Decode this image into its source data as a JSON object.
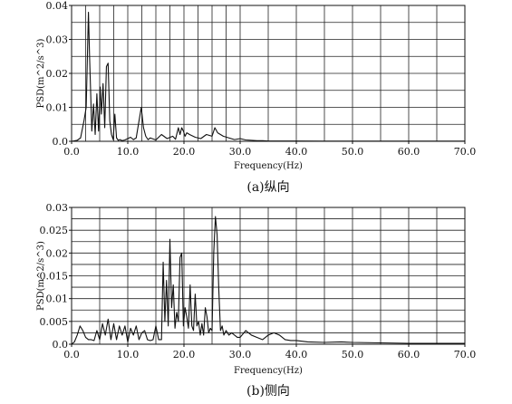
{
  "chart_data": [
    {
      "type": "line",
      "caption": "(a)纵向",
      "xlabel": "Frequency(Hz)",
      "ylabel": "PSD(m^2/s^3)",
      "xlim": [
        0,
        70
      ],
      "ylim": [
        0,
        0.04
      ],
      "xticks": [
        0,
        10,
        20,
        30,
        40,
        50,
        60,
        70
      ],
      "xtick_labels": [
        "0.0",
        "10.0",
        "20.0",
        "30.0",
        "40.0",
        "50.0",
        "60.0",
        "70.0"
      ],
      "yticks": [
        0,
        0.01,
        0.02,
        0.03,
        0.04
      ],
      "ytick_labels": [
        "0.0",
        "0.01",
        "0.02",
        "0.03",
        "0.04"
      ],
      "grid": true,
      "x_gridlines": [
        0,
        2.5,
        5,
        7.5,
        10,
        12.5,
        15,
        17.5,
        20,
        22.5,
        25,
        27.5,
        30,
        35,
        40,
        45,
        50,
        55,
        60,
        65,
        70
      ],
      "y_gridlines": [
        0,
        0.005,
        0.01,
        0.015,
        0.02,
        0.025,
        0.03,
        0.035,
        0.04
      ],
      "series": [
        {
          "x": [
            0,
            1,
            1.6,
            2.2,
            2.6,
            3.0,
            3.2,
            3.6,
            3.9,
            4.2,
            4.5,
            4.8,
            5.1,
            5.3,
            5.6,
            5.9,
            6.2,
            6.5,
            6.8,
            7.1,
            7.4,
            7.7,
            8.0,
            8.3,
            8.6,
            9.0,
            9.5,
            10,
            10.5,
            11,
            11.5,
            12,
            12.4,
            12.8,
            13.2,
            13.6,
            14,
            15,
            16,
            17,
            18,
            18.5,
            19,
            19.3,
            19.6,
            19.9,
            20.2,
            20.5,
            21,
            22,
            23,
            24,
            25,
            25.5,
            26,
            26.5,
            27,
            28,
            29,
            30,
            31,
            32,
            33,
            34,
            35,
            36,
            37,
            38,
            39,
            40,
            45,
            50,
            55,
            60,
            65,
            70
          ],
          "y": [
            0,
            0.0003,
            0.001,
            0.006,
            0.01,
            0.038,
            0.025,
            0.003,
            0.011,
            0.002,
            0.014,
            0.003,
            0.016,
            0.008,
            0.017,
            0.004,
            0.022,
            0.023,
            0.006,
            0.002,
            0.0005,
            0.008,
            0.001,
            0.0003,
            0.0005,
            0.0002,
            0.0004,
            0.0008,
            0.0012,
            0.0005,
            0.001,
            0.006,
            0.01,
            0.004,
            0.0015,
            0.0005,
            0.001,
            0.0004,
            0.002,
            0.0008,
            0.0015,
            0.0006,
            0.004,
            0.002,
            0.004,
            0.003,
            0.0015,
            0.0025,
            0.002,
            0.0012,
            0.0008,
            0.002,
            0.0015,
            0.004,
            0.0025,
            0.002,
            0.0015,
            0.001,
            0.0005,
            0.0008,
            0.0004,
            0.0003,
            0.0002,
            0.0002,
            0.0001,
            0.0001,
            0.0001,
            0.0001,
            0.0001,
            0.0001,
            5e-05,
            5e-05,
            5e-05,
            5e-05,
            5e-05,
            5e-05
          ]
        }
      ]
    },
    {
      "type": "line",
      "caption": "(b)侧向",
      "xlabel": "Frequency(Hz)",
      "ylabel": "PSD(m^2/s^3)",
      "xlim": [
        0,
        70
      ],
      "ylim": [
        0,
        0.03
      ],
      "xticks": [
        0,
        10,
        20,
        30,
        40,
        50,
        60,
        70
      ],
      "xtick_labels": [
        "0.0",
        "10.0",
        "20.0",
        "30.0",
        "40.0",
        "50.0",
        "60.0",
        "70.0"
      ],
      "yticks": [
        0,
        0.005,
        0.01,
        0.015,
        0.02,
        0.025,
        0.03
      ],
      "ytick_labels": [
        "0.0",
        "0.005",
        "0.01",
        "0.015",
        "0.02",
        "0.025",
        "0.03"
      ],
      "grid": true,
      "x_gridlines": [
        0,
        5,
        10,
        15,
        20,
        25,
        30,
        35,
        40,
        45,
        50,
        55,
        60,
        65,
        70
      ],
      "y_gridlines": [
        0,
        0.0025,
        0.005,
        0.0075,
        0.01,
        0.0125,
        0.015,
        0.0175,
        0.02,
        0.0225,
        0.025,
        0.0275,
        0.03
      ],
      "series": [
        {
          "x": [
            0,
            0.5,
            1,
            1.5,
            2,
            2.5,
            3,
            3.5,
            4,
            4.5,
            5,
            5.5,
            6,
            6.5,
            7,
            7.5,
            8,
            8.5,
            9,
            9.5,
            10,
            10.5,
            11,
            11.5,
            12,
            12.5,
            13,
            13.5,
            14,
            14.5,
            15,
            15.5,
            16,
            16.3,
            16.6,
            16.9,
            17.2,
            17.5,
            17.8,
            18.1,
            18.4,
            18.7,
            19,
            19.3,
            19.6,
            19.9,
            20.2,
            20.5,
            20.8,
            21.1,
            21.4,
            21.7,
            22,
            22.3,
            22.6,
            22.9,
            23.2,
            23.5,
            23.8,
            24.1,
            24.4,
            24.7,
            25,
            25.3,
            25.6,
            25.9,
            26.2,
            26.5,
            26.8,
            27.1,
            27.5,
            28,
            28.5,
            29,
            29.5,
            30,
            31,
            32,
            33,
            34,
            35,
            36,
            37,
            38,
            39,
            40,
            42,
            45,
            48,
            50,
            55,
            60,
            65,
            70
          ],
          "y": [
            0,
            0.0005,
            0.002,
            0.004,
            0.003,
            0.0015,
            0.001,
            0.001,
            0.0008,
            0.003,
            0.001,
            0.0045,
            0.002,
            0.0055,
            0.001,
            0.0045,
            0.001,
            0.004,
            0.002,
            0.004,
            0.0005,
            0.0035,
            0.002,
            0.004,
            0.001,
            0.0025,
            0.003,
            0.001,
            0.0008,
            0.001,
            0.004,
            0.001,
            0.001,
            0.018,
            0.005,
            0.014,
            0.004,
            0.023,
            0.008,
            0.013,
            0.0035,
            0.007,
            0.005,
            0.019,
            0.02,
            0.004,
            0.008,
            0.006,
            0.0035,
            0.013,
            0.004,
            0.003,
            0.011,
            0.004,
            0.005,
            0.002,
            0.0045,
            0.002,
            0.008,
            0.006,
            0.0025,
            0.0035,
            0.003,
            0.02,
            0.028,
            0.024,
            0.012,
            0.003,
            0.004,
            0.002,
            0.003,
            0.002,
            0.0025,
            0.002,
            0.0015,
            0.0015,
            0.003,
            0.002,
            0.0015,
            0.001,
            0.002,
            0.0025,
            0.002,
            0.001,
            0.0008,
            0.0008,
            0.0005,
            0.0004,
            0.0005,
            0.0004,
            0.0003,
            0.0002,
            0.0002,
            0.0002
          ]
        }
      ]
    }
  ]
}
